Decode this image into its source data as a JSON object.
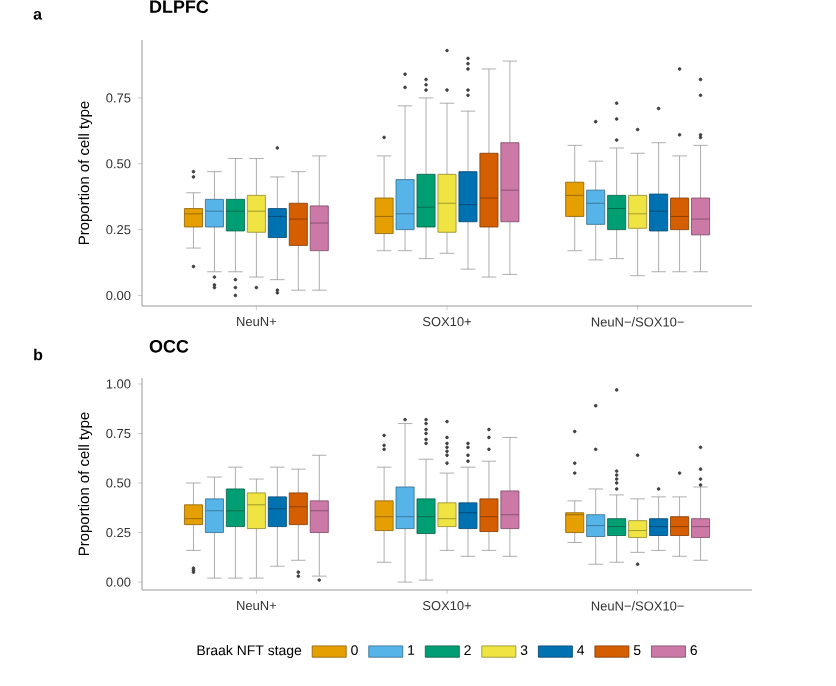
{
  "chart_data": [
    {
      "type": "box",
      "title": "DLPFC",
      "annotations": [
        "a"
      ],
      "ylabel": "Proportion of cell type",
      "categories": [
        "NeuN+",
        "SOX10+",
        "NeuN−/SOX10−"
      ],
      "ylim": [
        -0.04,
        0.97
      ],
      "yticks": [
        {
          "value": 0,
          "label": "0.00"
        },
        {
          "value": 0.25,
          "label": "0.25"
        },
        {
          "value": 0.5,
          "label": "0.50"
        },
        {
          "value": 0.75,
          "label": "0.75"
        }
      ],
      "legend": false,
      "grid": false,
      "series": [
        {
          "color": "#e69f00",
          "boxes": [
            {
              "low": 0.18,
              "q1": 0.26,
              "median": 0.31,
              "q3": 0.33,
              "high": 0.39,
              "outliers": [
                0.47,
                0.45,
                0.11
              ]
            },
            {
              "low": 0.17,
              "q1": 0.235,
              "median": 0.3,
              "q3": 0.37,
              "high": 0.53,
              "outliers": [
                0.6
              ]
            },
            {
              "low": 0.17,
              "q1": 0.3,
              "median": 0.38,
              "q3": 0.43,
              "high": 0.57
            }
          ]
        },
        {
          "color": "#56b4e9",
          "boxes": [
            {
              "low": 0.09,
              "q1": 0.26,
              "median": 0.32,
              "q3": 0.365,
              "high": 0.47,
              "outliers": [
                0.07,
                0.04,
                0.03
              ]
            },
            {
              "low": 0.17,
              "q1": 0.25,
              "median": 0.31,
              "q3": 0.44,
              "high": 0.72,
              "outliers": [
                0.79,
                0.84
              ]
            },
            {
              "low": 0.135,
              "q1": 0.27,
              "median": 0.35,
              "q3": 0.4,
              "high": 0.51,
              "outliers": [
                0.66
              ]
            }
          ]
        },
        {
          "color": "#009e73",
          "boxes": [
            {
              "low": 0.09,
              "q1": 0.245,
              "median": 0.32,
              "q3": 0.365,
              "high": 0.52,
              "outliers": [
                0.06,
                0.03,
                0.0
              ]
            },
            {
              "low": 0.14,
              "q1": 0.26,
              "median": 0.335,
              "q3": 0.46,
              "high": 0.75,
              "outliers": [
                0.78,
                0.8,
                0.82
              ]
            },
            {
              "low": 0.14,
              "q1": 0.25,
              "median": 0.33,
              "q3": 0.38,
              "high": 0.56,
              "outliers": [
                0.59,
                0.67,
                0.73
              ]
            }
          ]
        },
        {
          "color": "#f0e442",
          "boxes": [
            {
              "low": 0.07,
              "q1": 0.24,
              "median": 0.32,
              "q3": 0.38,
              "high": 0.52,
              "outliers": [
                0.03
              ]
            },
            {
              "low": 0.16,
              "q1": 0.24,
              "median": 0.35,
              "q3": 0.46,
              "high": 0.73,
              "outliers": [
                0.78,
                0.93
              ]
            },
            {
              "low": 0.075,
              "q1": 0.255,
              "median": 0.31,
              "q3": 0.38,
              "high": 0.54,
              "outliers": [
                0.63
              ]
            }
          ]
        },
        {
          "color": "#0072b2",
          "boxes": [
            {
              "low": 0.06,
              "q1": 0.22,
              "median": 0.3,
              "q3": 0.33,
              "high": 0.45,
              "outliers": [
                0.56,
                0.02,
                0.01
              ]
            },
            {
              "low": 0.1,
              "q1": 0.28,
              "median": 0.345,
              "q3": 0.47,
              "high": 0.7,
              "outliers": [
                0.76,
                0.78,
                0.86,
                0.88,
                0.9
              ]
            },
            {
              "low": 0.09,
              "q1": 0.245,
              "median": 0.32,
              "q3": 0.385,
              "high": 0.58,
              "outliers": [
                0.71
              ]
            }
          ]
        },
        {
          "color": "#d55e00",
          "boxes": [
            {
              "low": 0.02,
              "q1": 0.19,
              "median": 0.29,
              "q3": 0.35,
              "high": 0.47
            },
            {
              "low": 0.07,
              "q1": 0.26,
              "median": 0.37,
              "q3": 0.54,
              "high": 0.86
            },
            {
              "low": 0.09,
              "q1": 0.25,
              "median": 0.3,
              "q3": 0.37,
              "high": 0.53,
              "outliers": [
                0.61,
                0.86
              ]
            }
          ]
        },
        {
          "color": "#cc79a7",
          "boxes": [
            {
              "low": 0.02,
              "q1": 0.17,
              "median": 0.275,
              "q3": 0.34,
              "high": 0.53
            },
            {
              "low": 0.08,
              "q1": 0.28,
              "median": 0.4,
              "q3": 0.58,
              "high": 0.89
            },
            {
              "low": 0.09,
              "q1": 0.23,
              "median": 0.29,
              "q3": 0.37,
              "high": 0.57,
              "outliers": [
                0.6,
                0.61,
                0.76,
                0.82
              ]
            }
          ]
        }
      ]
    },
    {
      "type": "box",
      "title": "OCC",
      "annotations": [
        "b"
      ],
      "ylabel": "Proportion of cell type",
      "categories": [
        "NeuN+",
        "SOX10+",
        "NeuN−/SOX10−"
      ],
      "ylim": [
        -0.04,
        1.03
      ],
      "yticks": [
        {
          "value": 0,
          "label": "0.00"
        },
        {
          "value": 0.25,
          "label": "0.25"
        },
        {
          "value": 0.5,
          "label": "0.50"
        },
        {
          "value": 0.75,
          "label": "0.75"
        },
        {
          "value": 1,
          "label": "1.00"
        }
      ],
      "legend": "bottom",
      "legend_title": "Braak NFT stage",
      "grid": false,
      "series": [
        {
          "name": "0",
          "color": "#e69f00",
          "boxes": [
            {
              "low": 0.16,
              "q1": 0.29,
              "median": 0.32,
              "q3": 0.39,
              "high": 0.5,
              "outliers": [
                0.05,
                0.06,
                0.07
              ]
            },
            {
              "low": 0.1,
              "q1": 0.26,
              "median": 0.33,
              "q3": 0.41,
              "high": 0.58,
              "outliers": [
                0.67,
                0.69,
                0.74
              ]
            },
            {
              "low": 0.2,
              "q1": 0.25,
              "median": 0.34,
              "q3": 0.35,
              "high": 0.41,
              "outliers": [
                0.55,
                0.6,
                0.76
              ]
            }
          ]
        },
        {
          "name": "1",
          "color": "#56b4e9",
          "boxes": [
            {
              "low": 0.02,
              "q1": 0.25,
              "median": 0.36,
              "q3": 0.42,
              "high": 0.53
            },
            {
              "low": 0.0,
              "q1": 0.27,
              "median": 0.33,
              "q3": 0.48,
              "high": 0.8,
              "outliers": [
                0.82
              ]
            },
            {
              "low": 0.09,
              "q1": 0.23,
              "median": 0.285,
              "q3": 0.34,
              "high": 0.47,
              "outliers": [
                0.67,
                0.89
              ]
            }
          ]
        },
        {
          "name": "2",
          "color": "#009e73",
          "boxes": [
            {
              "low": 0.02,
              "q1": 0.28,
              "median": 0.36,
              "q3": 0.47,
              "high": 0.58
            },
            {
              "low": 0.01,
              "q1": 0.245,
              "median": 0.33,
              "q3": 0.42,
              "high": 0.62,
              "outliers": [
                0.7,
                0.72,
                0.75,
                0.77,
                0.8,
                0.82
              ]
            },
            {
              "low": 0.1,
              "q1": 0.235,
              "median": 0.28,
              "q3": 0.32,
              "high": 0.44,
              "outliers": [
                0.47,
                0.5,
                0.52,
                0.54,
                0.56,
                0.97
              ]
            }
          ]
        },
        {
          "name": "3",
          "color": "#f0e442",
          "boxes": [
            {
              "low": 0.02,
              "q1": 0.27,
              "median": 0.39,
              "q3": 0.45,
              "high": 0.52
            },
            {
              "low": 0.16,
              "q1": 0.28,
              "median": 0.32,
              "q3": 0.4,
              "high": 0.55,
              "outliers": [
                0.6,
                0.64,
                0.66,
                0.68,
                0.7,
                0.73,
                0.81
              ]
            },
            {
              "low": 0.15,
              "q1": 0.225,
              "median": 0.26,
              "q3": 0.31,
              "high": 0.42,
              "outliers": [
                0.09,
                0.64
              ]
            }
          ]
        },
        {
          "name": "4",
          "color": "#0072b2",
          "boxes": [
            {
              "low": 0.08,
              "q1": 0.28,
              "median": 0.37,
              "q3": 0.43,
              "high": 0.58
            },
            {
              "low": 0.13,
              "q1": 0.27,
              "median": 0.35,
              "q3": 0.4,
              "high": 0.58,
              "outliers": [
                0.61,
                0.64,
                0.68,
                0.7
              ]
            },
            {
              "low": 0.16,
              "q1": 0.235,
              "median": 0.28,
              "q3": 0.32,
              "high": 0.43,
              "outliers": [
                0.47
              ]
            }
          ]
        },
        {
          "name": "5",
          "color": "#d55e00",
          "boxes": [
            {
              "low": 0.11,
              "q1": 0.29,
              "median": 0.38,
              "q3": 0.45,
              "high": 0.57,
              "outliers": [
                0.03,
                0.05
              ]
            },
            {
              "low": 0.16,
              "q1": 0.255,
              "median": 0.33,
              "q3": 0.42,
              "high": 0.61,
              "outliers": [
                0.67,
                0.73,
                0.77
              ]
            },
            {
              "low": 0.13,
              "q1": 0.235,
              "median": 0.28,
              "q3": 0.33,
              "high": 0.43,
              "outliers": [
                0.55
              ]
            }
          ]
        },
        {
          "name": "6",
          "color": "#cc79a7",
          "boxes": [
            {
              "low": 0.03,
              "q1": 0.25,
              "median": 0.36,
              "q3": 0.41,
              "high": 0.64,
              "outliers": [
                0.01
              ]
            },
            {
              "low": 0.13,
              "q1": 0.27,
              "median": 0.34,
              "q3": 0.46,
              "high": 0.73
            },
            {
              "low": 0.11,
              "q1": 0.225,
              "median": 0.28,
              "q3": 0.32,
              "high": 0.48,
              "outliers": [
                0.49,
                0.52,
                0.57,
                0.68
              ]
            }
          ]
        }
      ]
    }
  ]
}
